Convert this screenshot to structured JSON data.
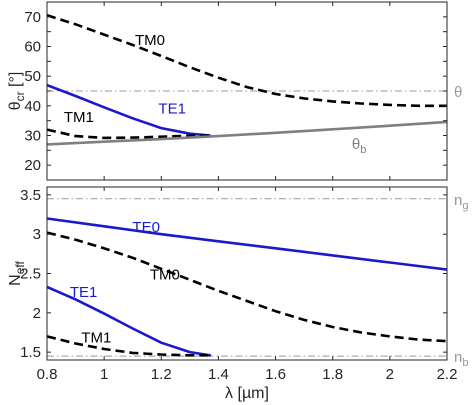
{
  "chart_data": [
    {
      "type": "line",
      "ylabel": "θ",
      "ylabel_sub": "cr",
      "ylabel_unit": " [°]",
      "xlim": [
        0.8,
        2.2
      ],
      "ylim": [
        15,
        75
      ],
      "yticks": [
        20,
        25,
        30,
        35,
        40,
        45,
        50,
        55,
        60,
        65,
        70
      ],
      "ytick_labels": [
        "20",
        "",
        "30",
        "",
        "40",
        "",
        "50",
        "",
        "60",
        "",
        "70"
      ],
      "grid": false,
      "reference_line": {
        "y": 45,
        "label": "θ",
        "color": "#999999"
      },
      "series": [
        {
          "name": "TM0",
          "color": "#000000",
          "style": "dashed",
          "x": [
            0.8,
            0.9,
            1.0,
            1.1,
            1.2,
            1.3,
            1.4,
            1.5,
            1.6,
            1.7,
            1.8,
            1.9,
            2.0,
            2.1,
            2.2
          ],
          "y": [
            70.5,
            67.5,
            64.0,
            60.5,
            56.8,
            53.0,
            49.5,
            46.3,
            44.0,
            42.5,
            41.5,
            40.8,
            40.3,
            40.0,
            40.0
          ]
        },
        {
          "name": "TE1",
          "color": "#1a1acc",
          "style": "solid",
          "x": [
            0.8,
            0.9,
            1.0,
            1.1,
            1.2,
            1.3,
            1.37
          ],
          "y": [
            47.0,
            43.3,
            39.5,
            35.8,
            32.5,
            30.6,
            30.0
          ]
        },
        {
          "name": "TM1",
          "color": "#000000",
          "style": "dashed",
          "x": [
            0.8,
            0.9,
            1.0,
            1.1,
            1.2,
            1.3,
            1.37
          ],
          "y": [
            32.0,
            29.8,
            29.2,
            29.3,
            29.6,
            29.9,
            30.0
          ]
        },
        {
          "name": "θ_b",
          "label": "θ",
          "label_sub": "b",
          "color": "#808080",
          "style": "solid",
          "x": [
            0.8,
            1.0,
            1.2,
            1.4,
            1.6,
            1.8,
            2.0,
            2.2
          ],
          "y": [
            27.0,
            27.9,
            28.8,
            29.8,
            30.9,
            32.1,
            33.3,
            34.6
          ]
        }
      ]
    },
    {
      "type": "line",
      "xlabel": "λ [µm]",
      "ylabel": "N",
      "ylabel_sub": "eff",
      "xlim": [
        0.8,
        2.2
      ],
      "ylim": [
        1.4,
        3.6
      ],
      "xticks": [
        0.8,
        1.0,
        1.2,
        1.4,
        1.6,
        1.8,
        2.0,
        2.2
      ],
      "xtick_labels": [
        "0.8",
        "1",
        "1.2",
        "1.4",
        "1.6",
        "1.8",
        "2",
        "2.2"
      ],
      "yticks": [
        1.5,
        2.0,
        2.5,
        3.0,
        3.5
      ],
      "ytick_labels": [
        "1.5",
        "2",
        "2.5",
        "3",
        "3.5"
      ],
      "grid": false,
      "reference_lines": [
        {
          "y": 3.45,
          "label": "n",
          "label_sub": "g",
          "color": "#999999"
        },
        {
          "y": 1.45,
          "label": "n",
          "label_sub": "b",
          "color": "#999999"
        }
      ],
      "series": [
        {
          "name": "TE0",
          "color": "#1a1acc",
          "style": "solid",
          "x": [
            0.8,
            1.0,
            1.2,
            1.4,
            1.6,
            1.8,
            2.0,
            2.2
          ],
          "y": [
            3.2,
            3.1,
            3.0,
            2.91,
            2.82,
            2.73,
            2.64,
            2.55
          ]
        },
        {
          "name": "TM0",
          "color": "#000000",
          "style": "dashed",
          "x": [
            0.8,
            0.9,
            1.0,
            1.1,
            1.2,
            1.3,
            1.4,
            1.5,
            1.6,
            1.7,
            1.8,
            1.9,
            2.0,
            2.1,
            2.2
          ],
          "y": [
            3.02,
            2.93,
            2.82,
            2.7,
            2.56,
            2.42,
            2.28,
            2.15,
            2.02,
            1.91,
            1.82,
            1.75,
            1.7,
            1.66,
            1.64
          ]
        },
        {
          "name": "TE1",
          "color": "#1a1acc",
          "style": "solid",
          "x": [
            0.8,
            0.9,
            1.0,
            1.1,
            1.2,
            1.3,
            1.37
          ],
          "y": [
            2.33,
            2.17,
            1.99,
            1.8,
            1.62,
            1.5,
            1.46
          ]
        },
        {
          "name": "TM1",
          "color": "#000000",
          "style": "dashed",
          "x": [
            0.8,
            0.9,
            1.0,
            1.1,
            1.2,
            1.3,
            1.38
          ],
          "y": [
            1.7,
            1.61,
            1.54,
            1.49,
            1.47,
            1.46,
            1.46
          ]
        }
      ]
    }
  ]
}
